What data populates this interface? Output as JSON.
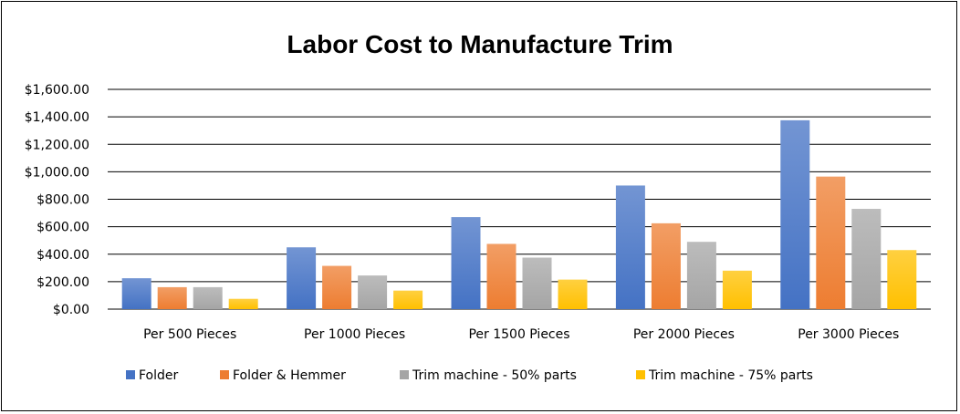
{
  "chart_data": {
    "type": "bar",
    "title": "Labor Cost to Manufacture Trim",
    "xlabel": "",
    "ylabel": "",
    "categories": [
      "Per 500 Pieces",
      "Per 1000 Pieces",
      "Per 1500 Pieces",
      "Per 2000 Pieces",
      "Per 3000 Pieces"
    ],
    "ylim": [
      0,
      1600
    ],
    "yticks": [
      0,
      200,
      400,
      600,
      800,
      1000,
      1200,
      1400,
      1600
    ],
    "ytick_labels": [
      "$0.00",
      "$200.00",
      "$400.00",
      "$600.00",
      "$800.00",
      "$1,000.00",
      "$1,200.00",
      "$1,400.00",
      "$1,600.00"
    ],
    "grid": true,
    "legend_position": "bottom",
    "series": [
      {
        "name": "Folder",
        "color": "#4472C4",
        "values": [
          225,
          450,
          670,
          900,
          1375
        ]
      },
      {
        "name": "Folder & Hemmer",
        "color": "#ED7D31",
        "values": [
          160,
          315,
          475,
          625,
          965
        ]
      },
      {
        "name": "Trim machine - 50% parts",
        "color": "#A5A5A5",
        "values": [
          160,
          245,
          375,
          490,
          730
        ]
      },
      {
        "name": "Trim machine - 75% parts",
        "color": "#FFC000",
        "values": [
          75,
          135,
          215,
          280,
          430
        ]
      }
    ]
  }
}
